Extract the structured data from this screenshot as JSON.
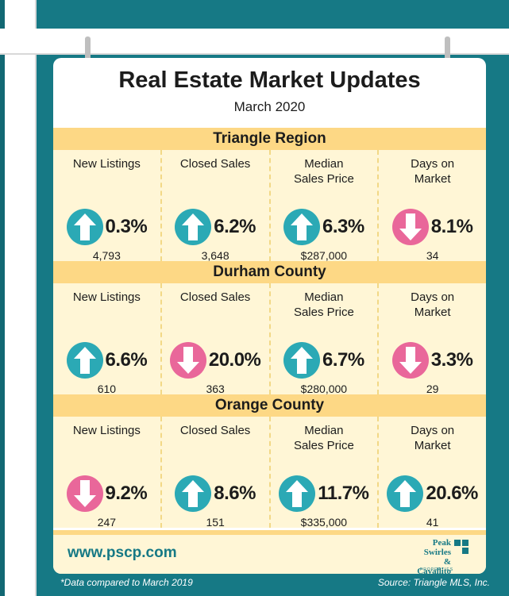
{
  "title": "Real Estate Market Updates",
  "subtitle": "March 2020",
  "sections": [
    {
      "name": "Triangle Region",
      "metrics": [
        {
          "label": "New Listings",
          "direction": "up",
          "pct": "0.3%",
          "value": "4,793"
        },
        {
          "label": "Closed Sales",
          "direction": "up",
          "pct": "6.2%",
          "value": "3,648"
        },
        {
          "label": "Median Sales Price",
          "direction": "up",
          "pct": "6.3%",
          "value": "$287,000"
        },
        {
          "label": "Days on Market",
          "direction": "down",
          "pct": "8.1%",
          "value": "34"
        }
      ]
    },
    {
      "name": "Durham County",
      "metrics": [
        {
          "label": "New Listings",
          "direction": "up",
          "pct": "6.6%",
          "value": "610"
        },
        {
          "label": "Closed Sales",
          "direction": "down",
          "pct": "20.0%",
          "value": "363"
        },
        {
          "label": "Median Sales Price",
          "direction": "up",
          "pct": "6.7%",
          "value": "$280,000"
        },
        {
          "label": "Days on Market",
          "direction": "down",
          "pct": "3.3%",
          "value": "29"
        }
      ]
    },
    {
      "name": "Orange County",
      "metrics": [
        {
          "label": "New Listings",
          "direction": "down",
          "pct": "9.2%",
          "value": "247"
        },
        {
          "label": "Closed Sales",
          "direction": "up",
          "pct": "8.6%",
          "value": "151"
        },
        {
          "label": "Median Sales Price",
          "direction": "up",
          "pct": "11.7%",
          "value": "$335,000"
        },
        {
          "label": "Days on Market",
          "direction": "up",
          "pct": "20.6%",
          "value": "41"
        }
      ]
    }
  ],
  "website": "www.pscp.com",
  "brand": {
    "line1": "Peak",
    "line2": "Swirles",
    "line3": "& Cavallito",
    "tagline": "PROPERTIES"
  },
  "footnote": "*Data compared to March 2019",
  "source": "Source: Triangle MLS, Inc.",
  "colors": {
    "background": "#167985",
    "section_header": "#fdd885",
    "section_body": "#fff6d6",
    "up_arrow": "#2ba9b5",
    "down_arrow": "#e9679a"
  },
  "icons": {
    "up": "arrow-up-icon",
    "down": "arrow-down-icon"
  }
}
